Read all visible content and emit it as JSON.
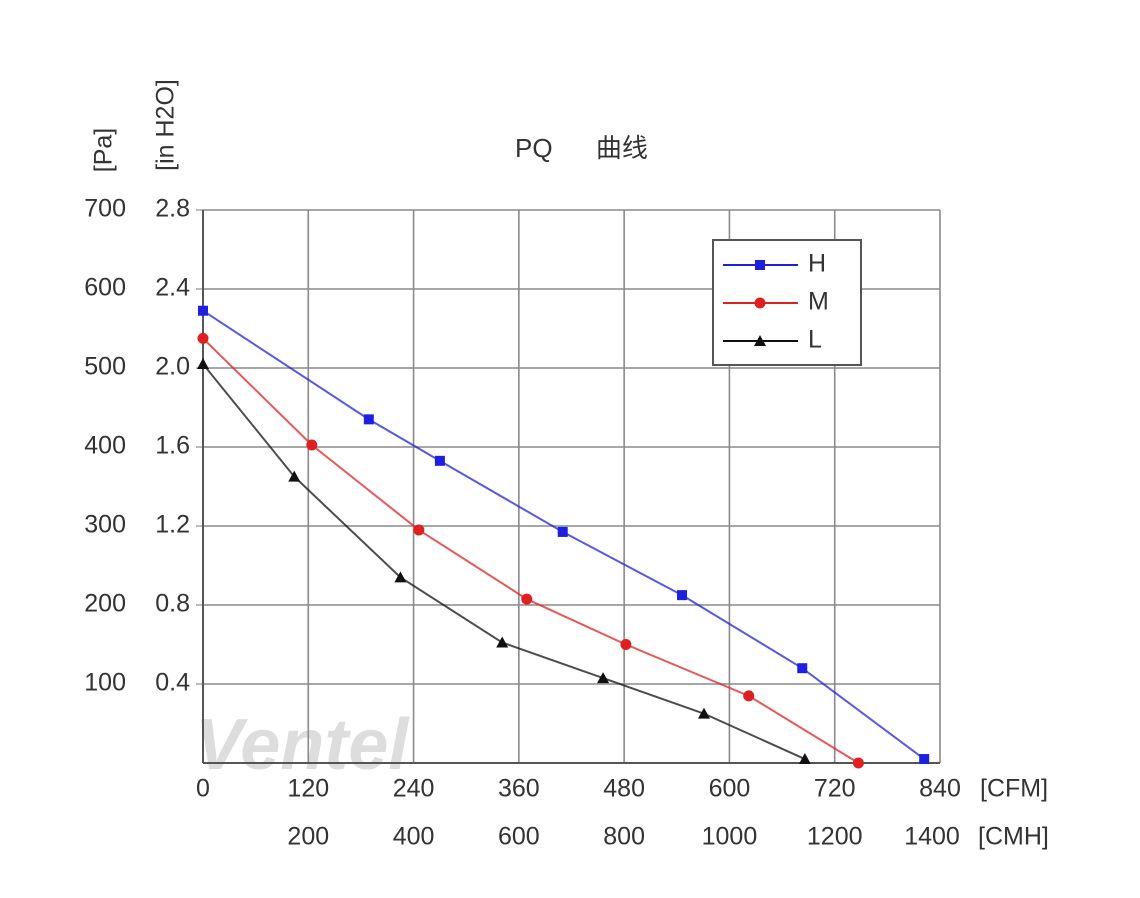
{
  "chart_data": {
    "type": "line",
    "title": "PQ 曲线",
    "watermark": "Ventel",
    "ylabel": "[in H2O]",
    "y2label": "[Pa]",
    "xlabel": "[CFM]",
    "x2label": "[CMH]",
    "xlim": [
      0,
      840
    ],
    "xticks": [
      0,
      120,
      240,
      360,
      480,
      600,
      720,
      840
    ],
    "x2lim": [
      0,
      1400
    ],
    "x2ticks": [
      200,
      400,
      600,
      800,
      1000,
      1200,
      1400
    ],
    "ylim": [
      0,
      2.8
    ],
    "yticks": [
      0.4,
      0.8,
      1.2,
      1.6,
      {
        "value": 2,
        "label": "2.0"
      },
      2.4,
      2.8
    ],
    "y2lim": [
      0,
      700
    ],
    "y2ticks": [
      100,
      200,
      300,
      400,
      500,
      600,
      700
    ],
    "grid": true,
    "legend": "upper right",
    "series": [
      {
        "name": "H",
        "color": "#1f1fe0",
        "marker": "square",
        "x": [
          0,
          189,
          270,
          410,
          546,
          683,
          822
        ],
        "values": [
          2.29,
          1.74,
          1.53,
          1.17,
          0.85,
          0.48,
          0.02
        ]
      },
      {
        "name": "M",
        "color": "#e02020",
        "marker": "circle",
        "x": [
          0,
          124,
          246,
          369,
          482,
          622,
          747
        ],
        "values": [
          2.15,
          1.61,
          1.18,
          0.83,
          0.6,
          0.34,
          0
        ]
      },
      {
        "name": "L",
        "color": "#111111",
        "marker": "triangle",
        "x": [
          0,
          104,
          225,
          341,
          456,
          571,
          686
        ],
        "values": [
          2.02,
          1.45,
          0.94,
          0.61,
          0.43,
          0.25,
          0.02
        ]
      }
    ]
  }
}
